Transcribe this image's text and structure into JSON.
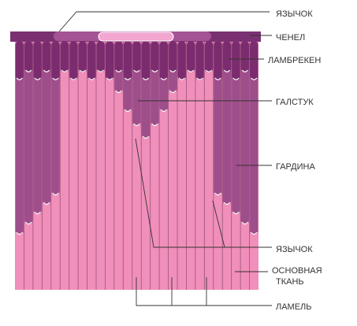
{
  "labels": {
    "tongue_top": "ЯЗЫЧОК",
    "cornice": "ЧЕНЕЛ",
    "valance": "ЛАМБРЕКЕН",
    "tie": "ГАЛСТУК",
    "drape": "ГАРДИНА",
    "tongue_bottom": "ЯЗЫЧОК",
    "base_fabric_1": "ОСНОВНАЯ",
    "base_fabric_2": "ТКАНЬ",
    "slat": "ЛАМЕЛЬ"
  },
  "colors": {
    "base": "#f08fb9",
    "drape": "#9e4e8a",
    "valance": "#7b2c6f",
    "cornice": "#7a3172",
    "cornice_highlight": "#a45495",
    "tongue": "#f3a6cf",
    "line": "#333333",
    "slat_line": "#5a1f50"
  }
}
